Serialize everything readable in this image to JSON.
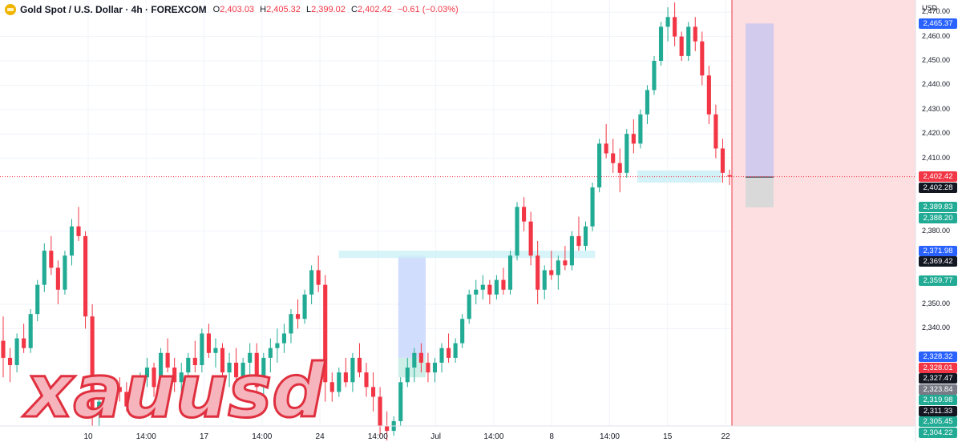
{
  "header": {
    "symbol": "Gold Spot / U.S. Dollar · 4h · FOREXCOM",
    "o_label": "O",
    "o": "2,403.03",
    "h_label": "H",
    "h": "2,405.32",
    "l_label": "L",
    "l": "2,399.02",
    "c_label": "C",
    "c": "2,402.42",
    "change": "−0.61 (−0.03%)"
  },
  "price_axis": {
    "currency": "USD"
  },
  "watermark": "xauusd",
  "colors": {
    "up": "#22ab94",
    "down": "#f23645",
    "bg": "#ffffff",
    "grid": "#f0f3fa",
    "red_zone": "#fddfe1",
    "blue_zone": "#c9d7fb",
    "teal_zone": "#c8ede6",
    "cyan_band": "#cdf1f6",
    "purple_zone": "#d3cbee",
    "gray_zone": "#d9d9d9",
    "watermark_fill": "#f6b4bd",
    "watermark_stroke": "#e0303f"
  },
  "chart_data": {
    "type": "candlestick",
    "title": "Gold Spot / U.S. Dollar · 4h · FOREXCOM",
    "ylim": [
      2300,
      2475
    ],
    "y_ticks": [
      "2,470.00",
      "2,460.00",
      "2,450.00",
      "2,440.00",
      "2,430.00",
      "2,420.00",
      "2,410.00",
      "2,380.00",
      "2,350.00",
      "2,340.00"
    ],
    "x_ticks": [
      "10",
      "14:00",
      "17",
      "14:00",
      "24",
      "14:00",
      "Jul",
      "14:00",
      "8",
      "14:00",
      "15",
      "22"
    ],
    "price_tags": [
      {
        "value": "2,465.37",
        "color": "#2962ff"
      },
      {
        "value": "2,402.42",
        "color": "#f23645"
      },
      {
        "value": "2,402.28",
        "color": "#131722"
      },
      {
        "value": "2,389.83",
        "color": "#22ab94"
      },
      {
        "value": "2,388.20",
        "color": "#22ab94"
      },
      {
        "value": "2,371.98",
        "color": "#2962ff"
      },
      {
        "value": "2,369.42",
        "color": "#131722"
      },
      {
        "value": "2,359.77",
        "color": "#22ab94"
      },
      {
        "value": "2,328.32",
        "color": "#2962ff"
      },
      {
        "value": "2,328.01",
        "color": "#f23645"
      },
      {
        "value": "2,327.47",
        "color": "#131722"
      },
      {
        "value": "2,323.84",
        "color": "#787b86"
      },
      {
        "value": "2,319.98",
        "color": "#22ab94"
      },
      {
        "value": "2,311.33",
        "color": "#131722"
      },
      {
        "value": "2,305.45",
        "color": "#22ab94"
      },
      {
        "value": "2,304.22",
        "color": "#22ab94"
      }
    ],
    "last_price": 2402.42,
    "ohlc": [
      [
        2335,
        2345,
        2320,
        2328
      ],
      [
        2328,
        2332,
        2318,
        2325
      ],
      [
        2325,
        2338,
        2322,
        2336
      ],
      [
        2336,
        2342,
        2330,
        2332
      ],
      [
        2332,
        2348,
        2330,
        2346
      ],
      [
        2346,
        2360,
        2343,
        2358
      ],
      [
        2358,
        2375,
        2355,
        2372
      ],
      [
        2372,
        2378,
        2362,
        2365
      ],
      [
        2365,
        2368,
        2350,
        2356
      ],
      [
        2356,
        2372,
        2354,
        2370
      ],
      [
        2370,
        2385,
        2366,
        2382
      ],
      [
        2382,
        2390,
        2376,
        2378
      ],
      [
        2378,
        2380,
        2340,
        2345
      ],
      [
        2345,
        2350,
        2300,
        2305
      ],
      [
        2305,
        2315,
        2300,
        2310
      ],
      [
        2310,
        2320,
        2305,
        2312
      ],
      [
        2312,
        2318,
        2308,
        2316
      ],
      [
        2316,
        2320,
        2310,
        2314
      ],
      [
        2314,
        2318,
        2306,
        2308
      ],
      [
        2308,
        2316,
        2304,
        2314
      ],
      [
        2314,
        2322,
        2310,
        2320
      ],
      [
        2320,
        2328,
        2316,
        2324
      ],
      [
        2324,
        2326,
        2312,
        2316
      ],
      [
        2316,
        2332,
        2314,
        2330
      ],
      [
        2330,
        2336,
        2322,
        2324
      ],
      [
        2324,
        2328,
        2314,
        2318
      ],
      [
        2318,
        2326,
        2314,
        2322
      ],
      [
        2322,
        2330,
        2318,
        2328
      ],
      [
        2328,
        2335,
        2322,
        2325
      ],
      [
        2325,
        2340,
        2322,
        2338
      ],
      [
        2338,
        2342,
        2328,
        2330
      ],
      [
        2330,
        2336,
        2324,
        2332
      ],
      [
        2332,
        2334,
        2320,
        2322
      ],
      [
        2322,
        2330,
        2316,
        2326
      ],
      [
        2326,
        2332,
        2318,
        2320
      ],
      [
        2320,
        2328,
        2314,
        2326
      ],
      [
        2326,
        2334,
        2320,
        2330
      ],
      [
        2330,
        2334,
        2312,
        2316
      ],
      [
        2316,
        2330,
        2312,
        2328
      ],
      [
        2328,
        2336,
        2322,
        2332
      ],
      [
        2332,
        2340,
        2326,
        2334
      ],
      [
        2334,
        2342,
        2330,
        2338
      ],
      [
        2338,
        2348,
        2334,
        2346
      ],
      [
        2346,
        2352,
        2340,
        2344
      ],
      [
        2344,
        2356,
        2342,
        2354
      ],
      [
        2354,
        2366,
        2350,
        2364
      ],
      [
        2364,
        2370,
        2355,
        2358
      ],
      [
        2358,
        2362,
        2310,
        2318
      ],
      [
        2318,
        2322,
        2310,
        2314
      ],
      [
        2314,
        2324,
        2312,
        2322
      ],
      [
        2322,
        2328,
        2316,
        2318
      ],
      [
        2318,
        2330,
        2314,
        2328
      ],
      [
        2328,
        2334,
        2320,
        2322
      ],
      [
        2322,
        2326,
        2312,
        2316
      ],
      [
        2316,
        2322,
        2306,
        2312
      ],
      [
        2312,
        2316,
        2296,
        2300
      ],
      [
        2300,
        2306,
        2294,
        2298
      ],
      [
        2298,
        2304,
        2296,
        2302
      ],
      [
        2302,
        2320,
        2300,
        2318
      ],
      [
        2318,
        2328,
        2316,
        2324
      ],
      [
        2324,
        2332,
        2318,
        2330
      ],
      [
        2330,
        2334,
        2322,
        2326
      ],
      [
        2326,
        2330,
        2318,
        2322
      ],
      [
        2322,
        2328,
        2318,
        2326
      ],
      [
        2326,
        2334,
        2322,
        2332
      ],
      [
        2332,
        2338,
        2326,
        2328
      ],
      [
        2328,
        2336,
        2326,
        2334
      ],
      [
        2334,
        2346,
        2332,
        2344
      ],
      [
        2344,
        2356,
        2342,
        2354
      ],
      [
        2354,
        2360,
        2350,
        2356
      ],
      [
        2356,
        2362,
        2352,
        2358
      ],
      [
        2358,
        2360,
        2350,
        2354
      ],
      [
        2354,
        2362,
        2352,
        2360
      ],
      [
        2360,
        2365,
        2354,
        2356
      ],
      [
        2356,
        2372,
        2354,
        2370
      ],
      [
        2370,
        2392,
        2368,
        2390
      ],
      [
        2390,
        2394,
        2380,
        2384
      ],
      [
        2384,
        2388,
        2366,
        2370
      ],
      [
        2370,
        2376,
        2350,
        2356
      ],
      [
        2356,
        2366,
        2352,
        2364
      ],
      [
        2364,
        2372,
        2360,
        2362
      ],
      [
        2362,
        2370,
        2356,
        2368
      ],
      [
        2368,
        2374,
        2364,
        2366
      ],
      [
        2366,
        2380,
        2364,
        2378
      ],
      [
        2378,
        2386,
        2372,
        2374
      ],
      [
        2374,
        2384,
        2372,
        2382
      ],
      [
        2382,
        2400,
        2380,
        2398
      ],
      [
        2398,
        2418,
        2396,
        2416
      ],
      [
        2416,
        2424,
        2410,
        2412
      ],
      [
        2412,
        2418,
        2404,
        2408
      ],
      [
        2408,
        2414,
        2396,
        2404
      ],
      [
        2404,
        2422,
        2402,
        2420
      ],
      [
        2420,
        2426,
        2412,
        2416
      ],
      [
        2416,
        2430,
        2414,
        2428
      ],
      [
        2428,
        2440,
        2424,
        2438
      ],
      [
        2438,
        2452,
        2436,
        2450
      ],
      [
        2450,
        2466,
        2448,
        2464
      ],
      [
        2464,
        2472,
        2458,
        2468
      ],
      [
        2468,
        2474,
        2456,
        2460
      ],
      [
        2460,
        2462,
        2450,
        2452
      ],
      [
        2452,
        2466,
        2450,
        2464
      ],
      [
        2464,
        2468,
        2454,
        2458
      ],
      [
        2458,
        2462,
        2440,
        2444
      ],
      [
        2444,
        2448,
        2424,
        2428
      ],
      [
        2428,
        2432,
        2410,
        2414
      ],
      [
        2414,
        2418,
        2400,
        2404
      ],
      [
        2403.03,
        2405.32,
        2399.02,
        2402.42
      ]
    ],
    "zones": [
      {
        "kind": "short-position-risk",
        "x_from": 0.435,
        "x_to": 0.465,
        "y_from": 2370,
        "y_to": 2328
      },
      {
        "kind": "short-position-target",
        "x_from": 0.435,
        "x_to": 0.465,
        "y_from": 2328,
        "y_to": 2320
      },
      {
        "kind": "band",
        "x_from": 0.37,
        "x_to": 0.65,
        "y_from": 2372,
        "y_to": 2369
      }
    ]
  }
}
